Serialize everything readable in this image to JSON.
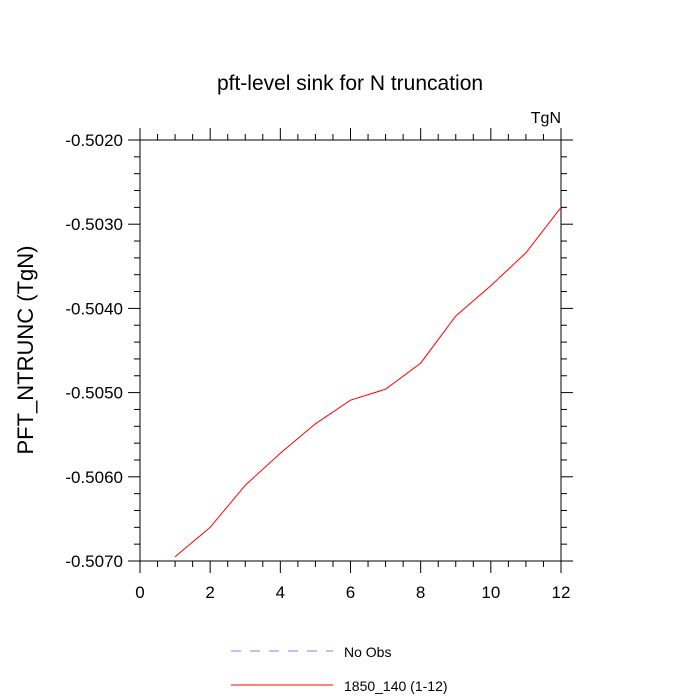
{
  "chart_data": {
    "type": "line",
    "title": "pft-level sink for N truncation",
    "units_label": "TgN",
    "ylabel": "PFT_NTRUNC  (TgN)",
    "xlabel": "",
    "xlim": [
      0,
      12
    ],
    "ylim": [
      -0.507,
      -0.502
    ],
    "x_ticks": [
      0,
      2,
      4,
      6,
      8,
      10,
      12
    ],
    "x_tick_labels": [
      "0",
      "2",
      "4",
      "6",
      "8",
      "10",
      "12"
    ],
    "y_ticks": [
      -0.502,
      -0.503,
      -0.504,
      -0.505,
      -0.506,
      -0.507
    ],
    "y_tick_labels": [
      "-0.5020",
      "-0.5030",
      "-0.5040",
      "-0.5050",
      "-0.5060",
      "-0.5070"
    ],
    "grid": false,
    "legend_position": "bottom-center",
    "series": [
      {
        "name": "1850_140 (1-12)",
        "color": "#ff0000",
        "dash": "solid",
        "x": [
          1,
          2,
          3,
          4,
          5,
          6,
          7,
          8,
          9,
          10,
          11,
          12
        ],
        "y": [
          -0.50695,
          -0.5066,
          -0.5061,
          -0.50572,
          -0.50537,
          -0.50509,
          -0.50496,
          -0.50465,
          -0.50409,
          -0.50373,
          -0.50334,
          -0.5028
        ]
      }
    ],
    "legend": [
      {
        "label": "No Obs",
        "color": "#8080ff",
        "dash": "dashed"
      },
      {
        "label": "1850_140 (1-12)",
        "color": "#ff0000",
        "dash": "solid"
      }
    ]
  }
}
